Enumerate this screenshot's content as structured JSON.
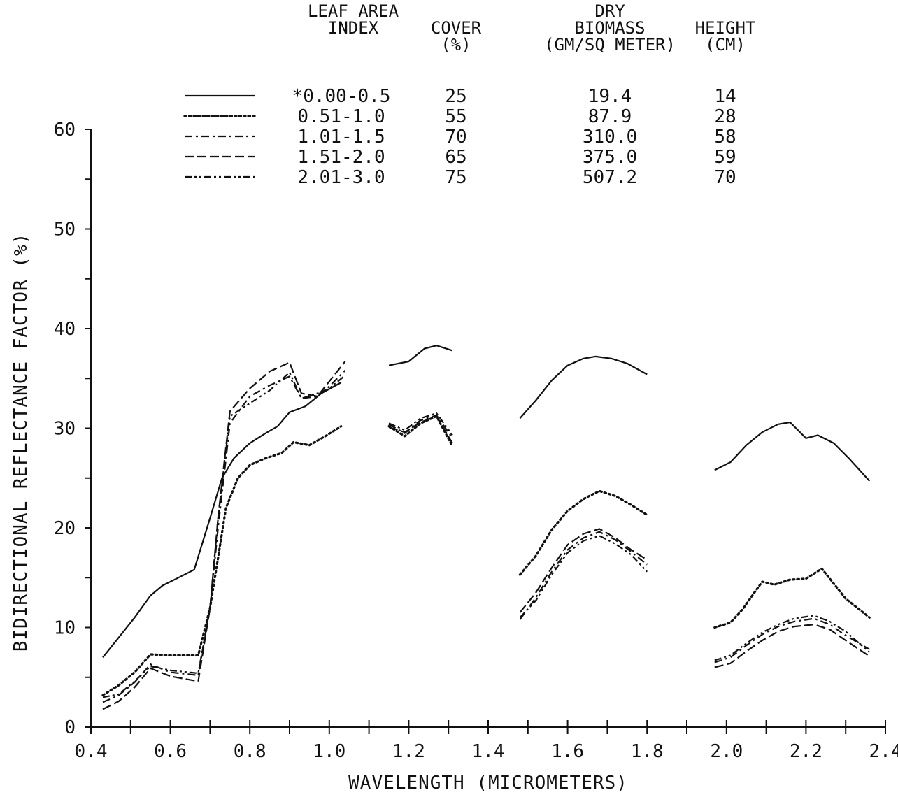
{
  "chart_data": {
    "type": "line",
    "xlabel": "WAVELENGTH (MICROMETERS)",
    "ylabel": "BIDIRECTIONAL REFLECTANCE FACTOR (%)",
    "xlim": [
      0.4,
      2.4
    ],
    "ylim": [
      0,
      60
    ],
    "x_ticks": [
      "0.4",
      "0.6",
      "0.8",
      "1.0",
      "1.2",
      "1.4",
      "1.6",
      "1.8",
      "2.0",
      "2.2",
      "2.4"
    ],
    "y_ticks": [
      "0",
      "10",
      "20",
      "30",
      "40",
      "50",
      "60"
    ],
    "grid": false,
    "legend_position": "top",
    "table_headers": {
      "lai": [
        "LEAF AREA",
        "INDEX"
      ],
      "cover": [
        "COVER",
        "(%)"
      ],
      "biomass": [
        "DRY",
        "BIOMASS",
        "(GM/SQ METER)"
      ],
      "height": [
        "HEIGHT",
        "(CM)"
      ]
    },
    "series": [
      {
        "name": "*0.00-0.5",
        "cover": "25",
        "biomass": "19.4",
        "height": "14",
        "style": "solid",
        "segments": [
          [
            [
              0.43,
              7
            ],
            [
              0.47,
              9
            ],
            [
              0.51,
              11
            ],
            [
              0.55,
              13.2
            ],
            [
              0.58,
              14.2
            ],
            [
              0.62,
              15
            ],
            [
              0.66,
              15.8
            ],
            [
              0.7,
              21
            ],
            [
              0.73,
              25
            ],
            [
              0.76,
              27
            ],
            [
              0.8,
              28.5
            ],
            [
              0.84,
              29.5
            ],
            [
              0.87,
              30.2
            ],
            [
              0.9,
              31.6
            ],
            [
              0.94,
              32.2
            ],
            [
              0.98,
              33.5
            ],
            [
              1.03,
              34.6
            ]
          ],
          [
            [
              1.15,
              36.3
            ],
            [
              1.2,
              36.7
            ],
            [
              1.24,
              38
            ],
            [
              1.27,
              38.3
            ],
            [
              1.31,
              37.8
            ]
          ],
          [
            [
              1.48,
              31
            ],
            [
              1.52,
              32.8
            ],
            [
              1.56,
              34.8
            ],
            [
              1.6,
              36.3
            ],
            [
              1.64,
              37
            ],
            [
              1.67,
              37.2
            ],
            [
              1.71,
              37
            ],
            [
              1.75,
              36.5
            ],
            [
              1.8,
              35.4
            ]
          ],
          [
            [
              1.97,
              25.8
            ],
            [
              2.01,
              26.6
            ],
            [
              2.05,
              28.3
            ],
            [
              2.09,
              29.6
            ],
            [
              2.13,
              30.4
            ],
            [
              2.16,
              30.6
            ],
            [
              2.2,
              29
            ],
            [
              2.23,
              29.3
            ],
            [
              2.27,
              28.5
            ],
            [
              2.31,
              26.9
            ],
            [
              2.36,
              24.7
            ]
          ]
        ]
      },
      {
        "name": "0.51-1.0",
        "cover": "55",
        "biomass": "87.9",
        "height": "28",
        "style": "dotted",
        "segments": [
          [
            [
              0.43,
              3.2
            ],
            [
              0.47,
              4.2
            ],
            [
              0.51,
              5.5
            ],
            [
              0.55,
              7.3
            ],
            [
              0.6,
              7.2
            ],
            [
              0.67,
              7.2
            ],
            [
              0.7,
              12
            ],
            [
              0.72,
              17
            ],
            [
              0.74,
              22
            ],
            [
              0.77,
              25
            ],
            [
              0.8,
              26.3
            ],
            [
              0.84,
              27
            ],
            [
              0.88,
              27.5
            ],
            [
              0.91,
              28.6
            ],
            [
              0.95,
              28.3
            ],
            [
              0.99,
              29.2
            ],
            [
              1.03,
              30.2
            ]
          ],
          [
            [
              1.15,
              30.2
            ],
            [
              1.19,
              29.2
            ],
            [
              1.23,
              30.5
            ],
            [
              1.27,
              31.2
            ],
            [
              1.31,
              28.2
            ]
          ],
          [
            [
              1.48,
              15.3
            ],
            [
              1.52,
              17.2
            ],
            [
              1.56,
              19.8
            ],
            [
              1.6,
              21.7
            ],
            [
              1.64,
              22.9
            ],
            [
              1.68,
              23.7
            ],
            [
              1.72,
              23.2
            ],
            [
              1.76,
              22.3
            ],
            [
              1.8,
              21.3
            ]
          ],
          [
            [
              1.97,
              10
            ],
            [
              2.01,
              10.5
            ],
            [
              2.04,
              11.8
            ],
            [
              2.07,
              13.5
            ],
            [
              2.09,
              14.6
            ],
            [
              2.12,
              14.3
            ],
            [
              2.16,
              14.8
            ],
            [
              2.2,
              14.9
            ],
            [
              2.24,
              15.9
            ],
            [
              2.27,
              14.4
            ],
            [
              2.3,
              12.9
            ],
            [
              2.36,
              11
            ]
          ]
        ]
      },
      {
        "name": "1.01-1.5",
        "cover": "70",
        "biomass": "310.0",
        "height": "58",
        "style": "dashdot",
        "segments": [
          [
            [
              0.43,
              2.5
            ],
            [
              0.47,
              3.2
            ],
            [
              0.51,
              4.5
            ],
            [
              0.55,
              6.3
            ],
            [
              0.6,
              5.5
            ],
            [
              0.67,
              5.2
            ],
            [
              0.7,
              12
            ],
            [
              0.72,
              20
            ],
            [
              0.75,
              30.5
            ],
            [
              0.8,
              33.2
            ],
            [
              0.85,
              34.3
            ],
            [
              0.9,
              35.2
            ],
            [
              0.93,
              33
            ],
            [
              0.97,
              33.2
            ],
            [
              1.0,
              34.2
            ],
            [
              1.04,
              35.8
            ]
          ],
          [
            [
              1.15,
              30.4
            ],
            [
              1.19,
              29.5
            ],
            [
              1.23,
              30.8
            ],
            [
              1.27,
              31.3
            ],
            [
              1.31,
              29
            ]
          ],
          [
            [
              1.48,
              10.8
            ],
            [
              1.52,
              13
            ],
            [
              1.56,
              15.6
            ],
            [
              1.6,
              17.8
            ],
            [
              1.64,
              19
            ],
            [
              1.68,
              19.6
            ],
            [
              1.72,
              18.8
            ],
            [
              1.76,
              17.6
            ],
            [
              1.8,
              16.3
            ]
          ],
          [
            [
              1.97,
              6.5
            ],
            [
              2.01,
              7
            ],
            [
              2.05,
              8.2
            ],
            [
              2.09,
              9.3
            ],
            [
              2.13,
              10.1
            ],
            [
              2.17,
              10.6
            ],
            [
              2.22,
              10.9
            ],
            [
              2.26,
              10.3
            ],
            [
              2.3,
              9.2
            ],
            [
              2.36,
              7.8
            ]
          ]
        ]
      },
      {
        "name": "1.51-2.0",
        "cover": "65",
        "biomass": "375.0",
        "height": "59",
        "style": "dashed",
        "segments": [
          [
            [
              0.43,
              1.8
            ],
            [
              0.47,
              2.6
            ],
            [
              0.51,
              4
            ],
            [
              0.55,
              5.9
            ],
            [
              0.6,
              5.1
            ],
            [
              0.67,
              4.6
            ],
            [
              0.7,
              12
            ],
            [
              0.72,
              21
            ],
            [
              0.75,
              31.7
            ],
            [
              0.8,
              34
            ],
            [
              0.85,
              35.7
            ],
            [
              0.9,
              36.6
            ],
            [
              0.93,
              33.5
            ],
            [
              0.97,
              33.2
            ],
            [
              1.0,
              34.7
            ],
            [
              1.04,
              36.7
            ]
          ],
          [
            [
              1.15,
              30.1
            ],
            [
              1.19,
              29.6
            ],
            [
              1.23,
              30.6
            ],
            [
              1.27,
              31.2
            ],
            [
              1.31,
              28.5
            ]
          ],
          [
            [
              1.48,
              11.5
            ],
            [
              1.52,
              13.5
            ],
            [
              1.56,
              16
            ],
            [
              1.6,
              18.3
            ],
            [
              1.64,
              19.4
            ],
            [
              1.68,
              19.9
            ],
            [
              1.72,
              19
            ],
            [
              1.76,
              17.8
            ],
            [
              1.8,
              16.8
            ]
          ],
          [
            [
              1.97,
              6
            ],
            [
              2.01,
              6.4
            ],
            [
              2.05,
              7.6
            ],
            [
              2.09,
              8.7
            ],
            [
              2.13,
              9.6
            ],
            [
              2.17,
              10.1
            ],
            [
              2.22,
              10.3
            ],
            [
              2.26,
              9.8
            ],
            [
              2.3,
              8.7
            ],
            [
              2.36,
              7.1
            ]
          ]
        ]
      },
      {
        "name": "2.01-3.0",
        "cover": "75",
        "biomass": "507.2",
        "height": "70",
        "style": "dashdotdot",
        "segments": [
          [
            [
              0.43,
              3
            ],
            [
              0.47,
              3.3
            ],
            [
              0.51,
              4.6
            ],
            [
              0.55,
              6.1
            ],
            [
              0.6,
              5.7
            ],
            [
              0.67,
              5.4
            ],
            [
              0.7,
              12
            ],
            [
              0.72,
              21
            ],
            [
              0.75,
              31.2
            ],
            [
              0.8,
              32.5
            ],
            [
              0.85,
              33.8
            ],
            [
              0.9,
              35.6
            ],
            [
              0.93,
              33
            ],
            [
              0.97,
              33.5
            ],
            [
              1.0,
              34
            ],
            [
              1.04,
              35.3
            ]
          ],
          [
            [
              1.15,
              30.5
            ],
            [
              1.19,
              29.8
            ],
            [
              1.23,
              31
            ],
            [
              1.27,
              31.5
            ],
            [
              1.31,
              29.3
            ]
          ],
          [
            [
              1.48,
              11
            ],
            [
              1.52,
              12.7
            ],
            [
              1.56,
              15.3
            ],
            [
              1.6,
              17.5
            ],
            [
              1.64,
              18.7
            ],
            [
              1.68,
              19.2
            ],
            [
              1.72,
              18.4
            ],
            [
              1.76,
              17.3
            ],
            [
              1.8,
              15.6
            ]
          ],
          [
            [
              1.97,
              6.7
            ],
            [
              2.01,
              7.2
            ],
            [
              2.05,
              8.4
            ],
            [
              2.09,
              9.5
            ],
            [
              2.13,
              10.3
            ],
            [
              2.17,
              10.9
            ],
            [
              2.22,
              11.2
            ],
            [
              2.26,
              10.6
            ],
            [
              2.3,
              9.6
            ],
            [
              2.36,
              7.5
            ]
          ]
        ]
      }
    ]
  }
}
